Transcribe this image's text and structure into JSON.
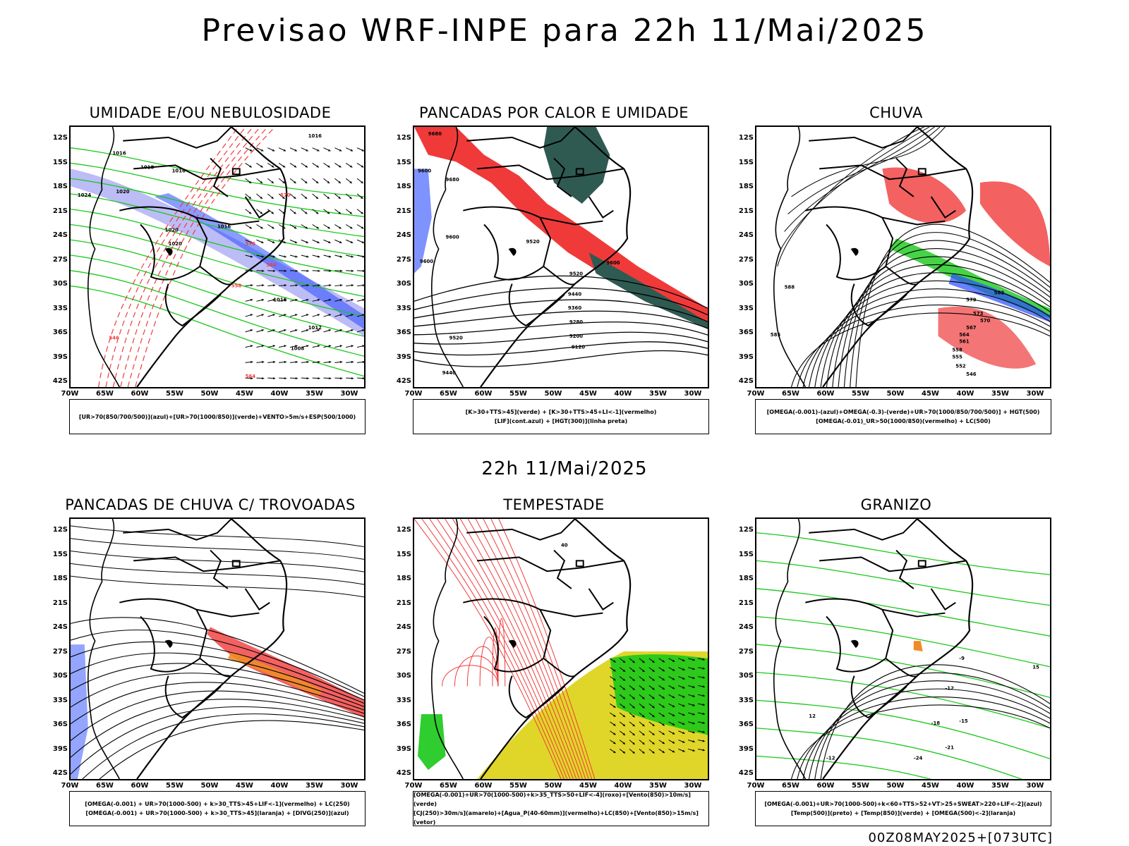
{
  "main_title": "Previsao WRF-INPE  para 22h 11/Mai/2025",
  "mid_title": "22h 11/Mai/2025",
  "footer": "00Z08MAY2025+[073UTC]",
  "lat_labels": [
    "12S",
    "15S",
    "18S",
    "21S",
    "24S",
    "27S",
    "30S",
    "33S",
    "36S",
    "39S",
    "42S"
  ],
  "lon_labels": [
    "70W",
    "65W",
    "60W",
    "55W",
    "50W",
    "45W",
    "40W",
    "35W",
    "30W"
  ],
  "colors": {
    "red": "#f03a3a",
    "green": "#19c819",
    "blue": "#2a4bff",
    "lavender": "#8f8ff0",
    "teal": "#2f5a52",
    "yellow": "#e0d62a",
    "orange": "#f08c28"
  },
  "panels": [
    {
      "title": "UMIDADE E/OU NEBULOSIDADE",
      "legend": [
        "[UR>70(850/700/500)](azul)+[UR>70(1000/850)](verde)+VENTO>5m/s+ESP(500/1000)"
      ],
      "labels": [
        "1016",
        "1016",
        "1018",
        "1016",
        "1020",
        "1020",
        "1024",
        "1020",
        "1016",
        "1016",
        "1012",
        "1008",
        "570",
        "576",
        "564",
        "558",
        "546",
        "564"
      ]
    },
    {
      "title": "PANCADAS POR CALOR E UMIDADE",
      "legend": [
        "[K>30+TTS>45](verde) + [K>30+TTS>45+LI<-1](vermelho)",
        "[LIF](cont.azul) + [HGT(300)](linha preta)"
      ],
      "labels": [
        "9680",
        "9600",
        "9680",
        "9600",
        "9520",
        "9600",
        "9520",
        "9440",
        "9360",
        "9280",
        "9200",
        "9120",
        "9520",
        "9440",
        "9600"
      ]
    },
    {
      "title": "CHUVA",
      "legend": [
        "[OMEGA(-0.001)-(azul)+OMEGA(-0.3)-(verde)+UR>70(1000/850/700/500)] + HGT(500)",
        "[OMEGA(-0.01)_UR>50(1000/850)(vermelho) + LC(500)"
      ],
      "labels": [
        "588",
        "585",
        "582",
        "579",
        "573",
        "570",
        "567",
        "564",
        "561",
        "558",
        "555",
        "552",
        "546"
      ]
    },
    {
      "title": "PANCADAS DE CHUVA C/ TROVOADAS",
      "legend": [
        "[OMEGA(-0.001) + UR>70(1000-500) + k>30_TTS>45+LIF<-1](vermelho) + LC(250)",
        "[OMEGA(-0.001) + UR>70(1000-500) + k>30_TTS>45](laranja) + [DIVG(250)](azul)"
      ],
      "labels": []
    },
    {
      "title": "TEMPESTADE",
      "legend": [
        "[OMEGA(-0.001)+UR>70(1000-500)+k>35_TTS>50+LIF<-4](roxo)+[Vento(850)>10m/s](verde)",
        "[CJ(250)>30m/s](amarelo)+[Agua_P(40-60mm)](vermelho)+LC(850)+[Vento(850)>15m/s](vetor)"
      ],
      "labels": [
        "40"
      ]
    },
    {
      "title": "GRANIZO",
      "legend": [
        "[OMEGA(-0.001)+UR>70(1000-500)+k<60+TTS>52+VT>25+SWEAT>220+LIF<-2](azul)",
        "[Temp(500)](preto) + [Temp(850)](verde) + [OMEGA(500)<-2](laranja)"
      ],
      "labels": [
        "-9",
        "-12",
        "-15",
        "-18",
        "-21",
        "-24",
        "-12",
        "12",
        "15"
      ]
    }
  ]
}
